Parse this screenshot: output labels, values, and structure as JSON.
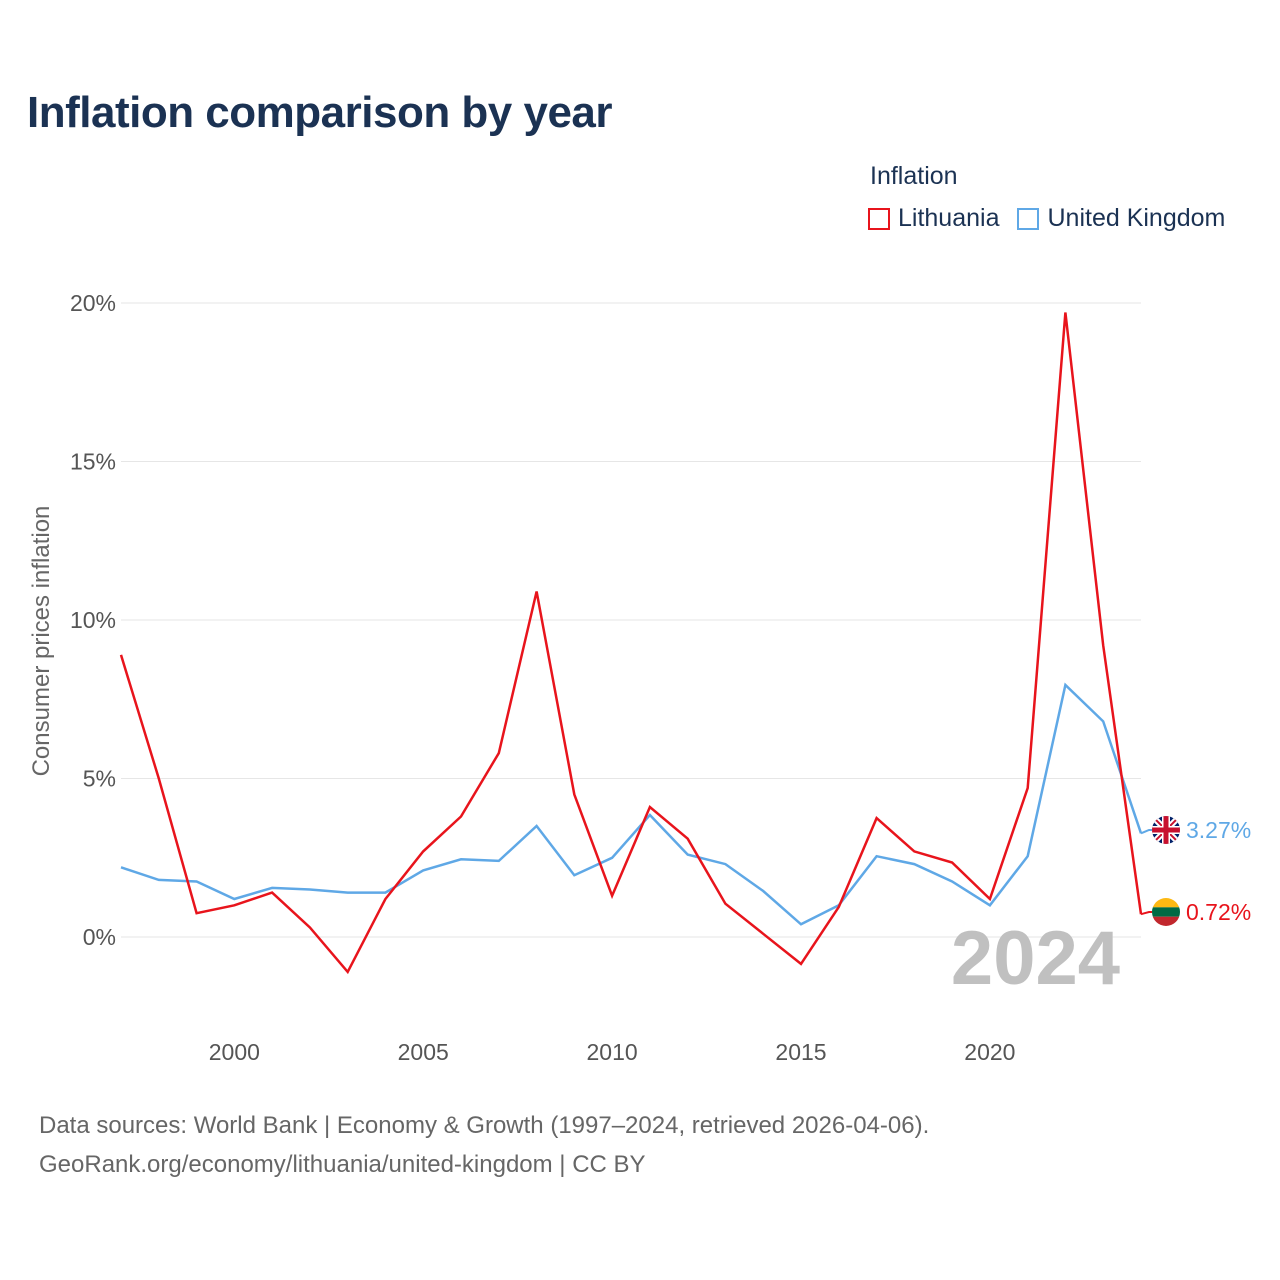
{
  "chart_data": {
    "type": "line",
    "title": "Inflation comparison by year",
    "legend_title": "Inflation",
    "ylabel": "Consumer prices inflation",
    "xlabel": "",
    "xlim": [
      1997,
      2024
    ],
    "ylim": [
      -2,
      20.5
    ],
    "yticks": [
      0,
      5,
      10,
      15,
      20
    ],
    "ytick_labels": [
      "0%",
      "5%",
      "10%",
      "15%",
      "20%"
    ],
    "xticks": [
      2000,
      2005,
      2010,
      2015,
      2020
    ],
    "xtick_labels": [
      "2000",
      "2005",
      "2010",
      "2015",
      "2020"
    ],
    "x": [
      1997,
      1998,
      1999,
      2000,
      2001,
      2002,
      2003,
      2004,
      2005,
      2006,
      2007,
      2008,
      2009,
      2010,
      2011,
      2012,
      2013,
      2014,
      2015,
      2016,
      2017,
      2018,
      2019,
      2020,
      2021,
      2022,
      2023,
      2024
    ],
    "series": [
      {
        "name": "Lithuania",
        "color": "#e8141c",
        "values": [
          8.9,
          5.0,
          0.75,
          1.0,
          1.4,
          0.3,
          -1.1,
          1.2,
          2.7,
          3.8,
          5.8,
          10.9,
          4.5,
          1.3,
          4.1,
          3.1,
          1.05,
          0.1,
          -0.85,
          0.95,
          3.75,
          2.7,
          2.35,
          1.2,
          4.7,
          19.7,
          9.2,
          0.72
        ],
        "end_label": "0.72%",
        "flag": "lithuania-flag"
      },
      {
        "name": "United Kingdom",
        "color": "#5fa8e6",
        "values": [
          2.2,
          1.8,
          1.75,
          1.2,
          1.55,
          1.5,
          1.4,
          1.4,
          2.1,
          2.45,
          2.4,
          3.5,
          1.95,
          2.5,
          3.85,
          2.6,
          2.3,
          1.45,
          0.4,
          1.0,
          2.55,
          2.3,
          1.75,
          1.0,
          2.55,
          7.95,
          6.8,
          3.27
        ],
        "end_label": "3.27%",
        "flag": "united-kingdom-flag"
      }
    ],
    "current_year_label": "2024"
  },
  "source": {
    "line1": "Data sources: World Bank | Economy & Growth (1997–2024, retrieved 2026-04-06).",
    "line2": "GeoRank.org/economy/lithuania/united-kingdom | CC BY"
  }
}
